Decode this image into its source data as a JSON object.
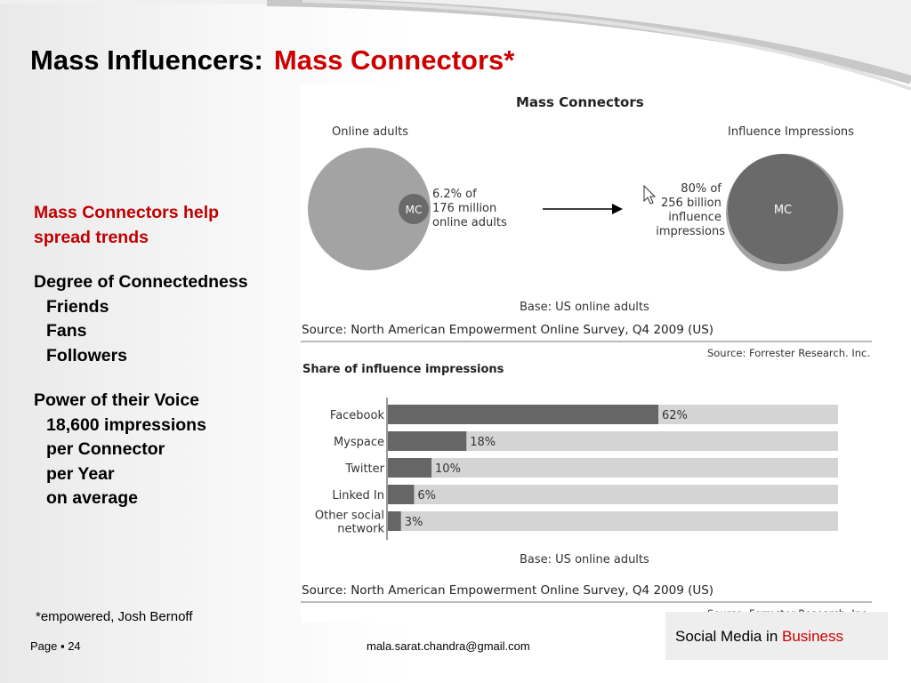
{
  "slide": {
    "title_main": "Mass Influencers:",
    "title_accent": "Mass Connectors*",
    "left": {
      "heading": [
        "Mass Connectors help",
        "spread trends"
      ],
      "degree_heading": "Degree of Connectedness",
      "degree_items": [
        "Friends",
        "Fans",
        "Followers"
      ],
      "power_heading": "Power of  their Voice",
      "power_items": [
        "18,600 impressions",
        "per Connector",
        "per Year",
        "on average"
      ]
    },
    "footnote": "*empowered, Josh Bernoff",
    "page_label": "Page ▪ 24",
    "email": "mala.sarat.chandra@gmail.com",
    "brand_plain": "Social Media in",
    "brand_accent": "Business"
  },
  "chart_data": [
    {
      "type": "diagram",
      "title": "Mass Connectors",
      "left_label": "Online adults",
      "left_inner_label": "MC",
      "left_annotation": [
        "6.2% of",
        "176 million",
        "online adults"
      ],
      "right_label": "Influence Impressions",
      "right_inner_label": "MC",
      "right_annotation": [
        "80% of",
        "256 billion",
        "influence",
        "impressions"
      ],
      "values": {
        "online_adults_share": 6.2,
        "online_adults_total_million": 176,
        "impressions_share": 80,
        "impressions_total_billion": 256
      },
      "base": "Base: US online adults",
      "source": "Source: North American Empowerment Online Survey, Q4 2009 (US)",
      "credit": "Source: Forrester Research. Inc."
    },
    {
      "type": "bar",
      "orientation": "horizontal",
      "title": "Share of influence impressions",
      "categories": [
        "Facebook",
        "Myspace",
        "Twitter",
        "Linked In",
        "Other social network"
      ],
      "category_lines": [
        [
          "Facebook"
        ],
        [
          "Myspace"
        ],
        [
          "Twitter"
        ],
        [
          "Linked In"
        ],
        [
          "Other social",
          "network"
        ]
      ],
      "values": [
        62,
        18,
        10,
        6,
        3
      ],
      "value_labels": [
        "62%",
        "18%",
        "10%",
        "6%",
        "3%"
      ],
      "xlim": [
        0,
        100
      ],
      "base": "Base: US online adults",
      "source": "Source: North American Empowerment Online Survey, Q4 2009 (US)",
      "credit": "Source: Forrester Research. Inc.",
      "colors": {
        "bar": "#666666",
        "track": "#d4d4d4"
      }
    }
  ]
}
